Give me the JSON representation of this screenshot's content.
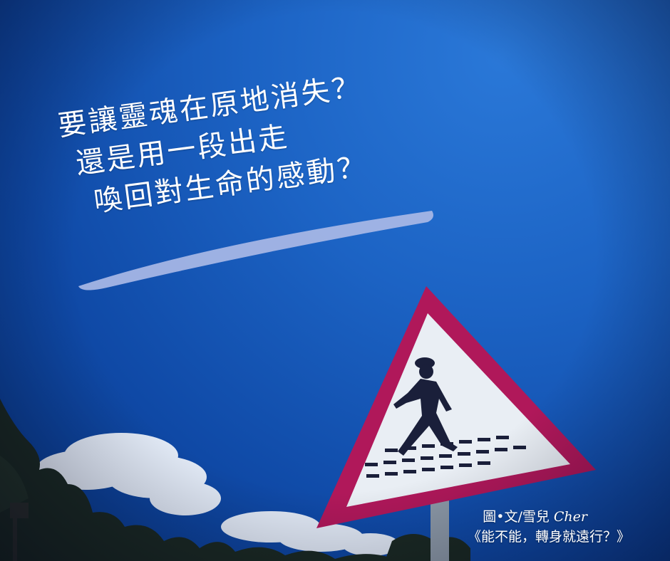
{
  "headline": {
    "line1": "要讓靈魂在原地消失？",
    "line2": "還是用一段出走",
    "line3": "喚回對生命的感動？"
  },
  "credit": {
    "author_prefix": "圖•文/雪兒 ",
    "author_signature": "Cher",
    "book_title": "《能不能，轉身就遠行？》"
  },
  "colors": {
    "sky": "#1c63c4",
    "sign_border": "#b0185a",
    "underline_stroke": "#a9b8e6"
  },
  "icons": {
    "sign_symbol": "pedestrian-crossing-icon"
  }
}
